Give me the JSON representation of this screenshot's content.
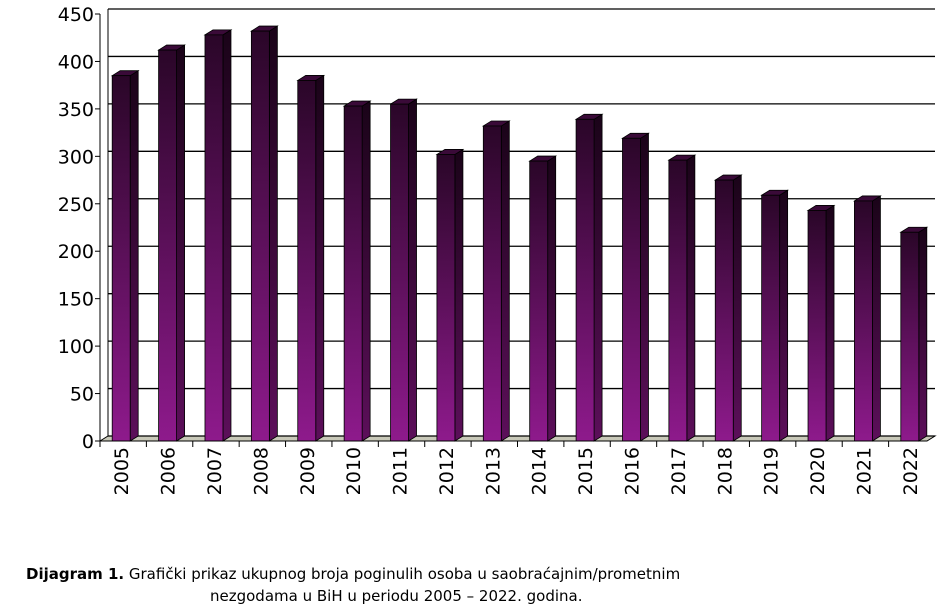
{
  "chart_data": {
    "type": "bar",
    "categories": [
      "2005",
      "2006",
      "2007",
      "2008",
      "2009",
      "2010",
      "2011",
      "2012",
      "2013",
      "2014",
      "2015",
      "2016",
      "2017",
      "2018",
      "2019",
      "2020",
      "2021",
      "2022"
    ],
    "values": [
      385,
      412,
      428,
      432,
      380,
      353,
      355,
      302,
      332,
      295,
      339,
      319,
      296,
      275,
      259,
      243,
      253,
      220
    ],
    "color": "#8b1a8b",
    "ylim": [
      0,
      450
    ],
    "yticks": [
      0,
      50,
      100,
      150,
      200,
      250,
      300,
      350,
      400,
      450
    ],
    "grid": true,
    "caption": {
      "label": "Dijagram 1.",
      "lines": [
        "Grafički prikaz ukupnog broja poginulih osoba u saobraćajnim/prometnim",
        "nezgodama u BiH u periodu 2005 – 2022. godina."
      ]
    }
  }
}
